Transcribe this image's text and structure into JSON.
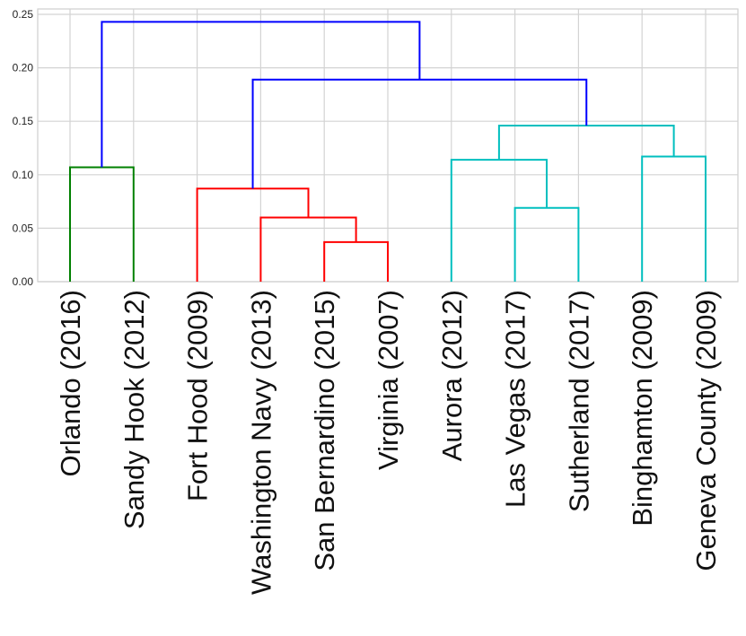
{
  "chart_data": {
    "type": "dendrogram",
    "title": "",
    "xlabel": "",
    "ylabel": "",
    "ylim": [
      0,
      0.25
    ],
    "yticks": [
      0.0,
      0.05,
      0.1,
      0.15,
      0.2,
      0.25
    ],
    "ytick_labels": [
      "0.00",
      "0.05",
      "0.10",
      "0.15",
      "0.20",
      "0.25"
    ],
    "grid": true,
    "leaves": [
      "Orlando (2016)",
      "Sandy Hook (2012)",
      "Fort Hood (2009)",
      "Washington Navy (2013)",
      "San Bernardino (2015)",
      "Virginia (2007)",
      "Aurora (2012)",
      "Las Vegas (2017)",
      "Sutherland (2017)",
      "Binghamton (2009)",
      "Geneva County (2009)"
    ],
    "colors": {
      "green": "#008000",
      "red": "#ff0000",
      "cyan": "#00bfbf",
      "blue": "#0000ff"
    },
    "merges": [
      {
        "id": "m1",
        "left": "Orlando (2016)",
        "right": "Sandy Hook (2012)",
        "height": 0.107,
        "color": "green"
      },
      {
        "id": "m2",
        "left": "San Bernardino (2015)",
        "right": "Virginia (2007)",
        "height": 0.037,
        "color": "red"
      },
      {
        "id": "m3",
        "left": "Washington Navy (2013)",
        "right": "m2",
        "height": 0.06,
        "color": "red"
      },
      {
        "id": "m4",
        "left": "Fort Hood (2009)",
        "right": "m3",
        "height": 0.087,
        "color": "red"
      },
      {
        "id": "m5",
        "left": "Las Vegas (2017)",
        "right": "Sutherland (2017)",
        "height": 0.069,
        "color": "cyan"
      },
      {
        "id": "m6",
        "left": "Aurora (2012)",
        "right": "m5",
        "height": 0.114,
        "color": "cyan"
      },
      {
        "id": "m7",
        "left": "Binghamton (2009)",
        "right": "Geneva County (2009)",
        "height": 0.117,
        "color": "cyan"
      },
      {
        "id": "m8",
        "left": "m6",
        "right": "m7",
        "height": 0.146,
        "color": "cyan"
      },
      {
        "id": "m9",
        "left": "m4",
        "right": "m8",
        "height": 0.189,
        "color": "blue"
      },
      {
        "id": "m10",
        "left": "m1",
        "right": "m9",
        "height": 0.243,
        "color": "blue"
      }
    ]
  }
}
